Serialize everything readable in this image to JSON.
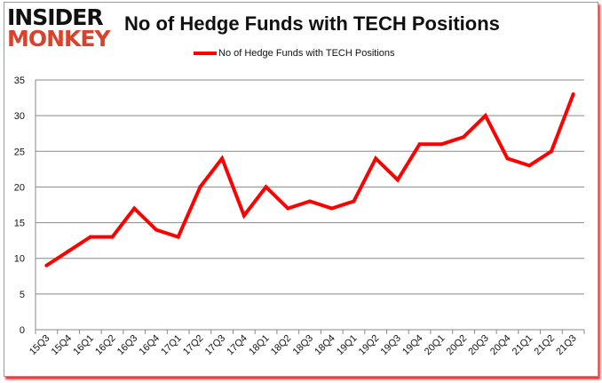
{
  "logo": {
    "line1": "INSIDER",
    "line2": "MONKEY"
  },
  "chart_data": {
    "type": "line",
    "title": "No of Hedge Funds with TECH Positions",
    "xlabel": "",
    "ylabel": "",
    "categories": [
      "15Q3",
      "15Q4",
      "16Q1",
      "16Q2",
      "16Q3",
      "16Q4",
      "17Q1",
      "17Q2",
      "17Q3",
      "17Q4",
      "18Q1",
      "18Q2",
      "18Q3",
      "18Q4",
      "19Q1",
      "19Q2",
      "19Q3",
      "19Q4",
      "20Q1",
      "20Q2",
      "20Q3",
      "20Q4",
      "21Q1",
      "21Q2",
      "21Q3"
    ],
    "series": [
      {
        "name": "No of Hedge Funds with TECH Positions",
        "color": "#ff0000",
        "values": [
          9,
          11,
          13,
          13,
          17,
          14,
          13,
          20,
          24,
          16,
          20,
          17,
          18,
          17,
          18,
          24,
          21,
          26,
          26,
          27,
          30,
          24,
          23,
          25,
          33
        ]
      }
    ],
    "ylim": [
      0,
      35
    ],
    "yticks": [
      0,
      5,
      10,
      15,
      20,
      25,
      30,
      35
    ],
    "grid": true,
    "legend": "top-center"
  }
}
